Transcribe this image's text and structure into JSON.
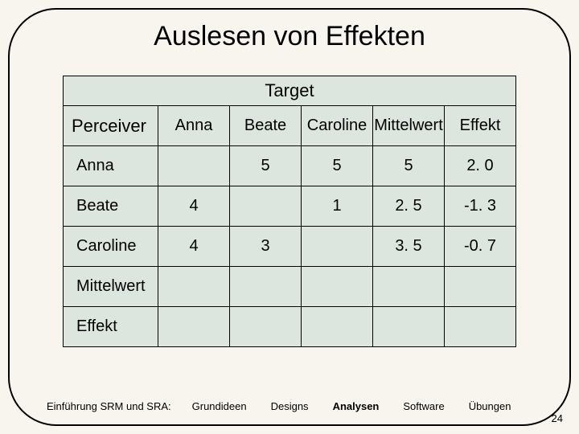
{
  "title": "Auslesen von Effekten",
  "table": {
    "target_label": "Target",
    "perceiver_label": "Perceiver",
    "col_headers": [
      "Anna",
      "Beate",
      "Caroline",
      "Mittelwert",
      "Effekt"
    ],
    "row_headers": [
      "Anna",
      "Beate",
      "Caroline",
      "Mittelwert",
      "Effekt"
    ],
    "cells": [
      [
        "",
        "5",
        "5",
        "5",
        "2. 0"
      ],
      [
        "4",
        "",
        "1",
        "2. 5",
        "-1. 3"
      ],
      [
        "4",
        "3",
        "",
        "3. 5",
        "-0. 7"
      ],
      [
        "",
        "",
        "",
        "",
        ""
      ],
      [
        "",
        "",
        "",
        "",
        ""
      ]
    ],
    "colors": {
      "cell_bg": "#dde6de",
      "border": "#000000",
      "slide_bg": "#f8f5ee"
    },
    "font_sizes": {
      "title": 34,
      "header": 22,
      "cell": 20,
      "footer": 13
    }
  },
  "footer": {
    "intro": "Einführung SRM und SRA:",
    "nav": [
      "Grundideen",
      "Designs",
      "Analysen",
      "Software",
      "Übungen"
    ],
    "bold_index": 2,
    "page_number": "24"
  }
}
